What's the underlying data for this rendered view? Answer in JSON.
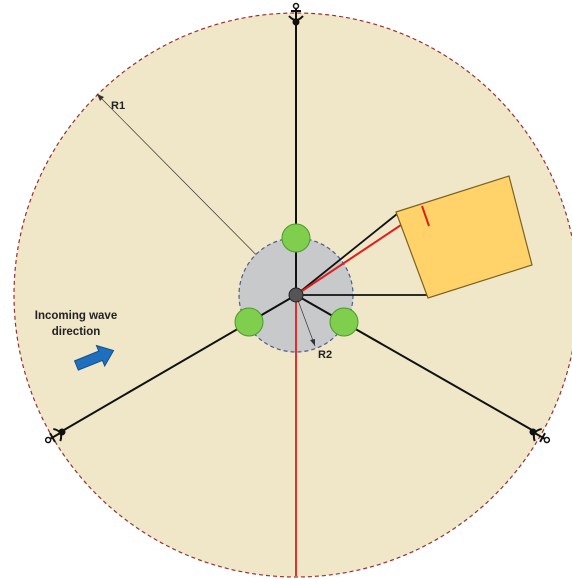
{
  "labels": {
    "r1": "R1",
    "r2": "R2",
    "wave_line1": "Incoming wave",
    "wave_line2": "direction"
  },
  "colors": {
    "sea": "#f0e6c8",
    "boundary": "#9b3030",
    "platform": "#c7c9cb",
    "platform_edge": "#4a5e8a",
    "buoy": "#7fce4e",
    "buoy_edge": "#4c9a2a",
    "mooring_line": "#111111",
    "cable": "#e21c1c",
    "panel": "#ffd36a",
    "panel_edge": "#7a6320",
    "arrow": "#1f6fbf"
  },
  "icons": {
    "anchors": [
      "anchor-icon-top",
      "anchor-icon-left",
      "anchor-icon-right"
    ],
    "wave_arrow": "arrow-right-icon"
  }
}
